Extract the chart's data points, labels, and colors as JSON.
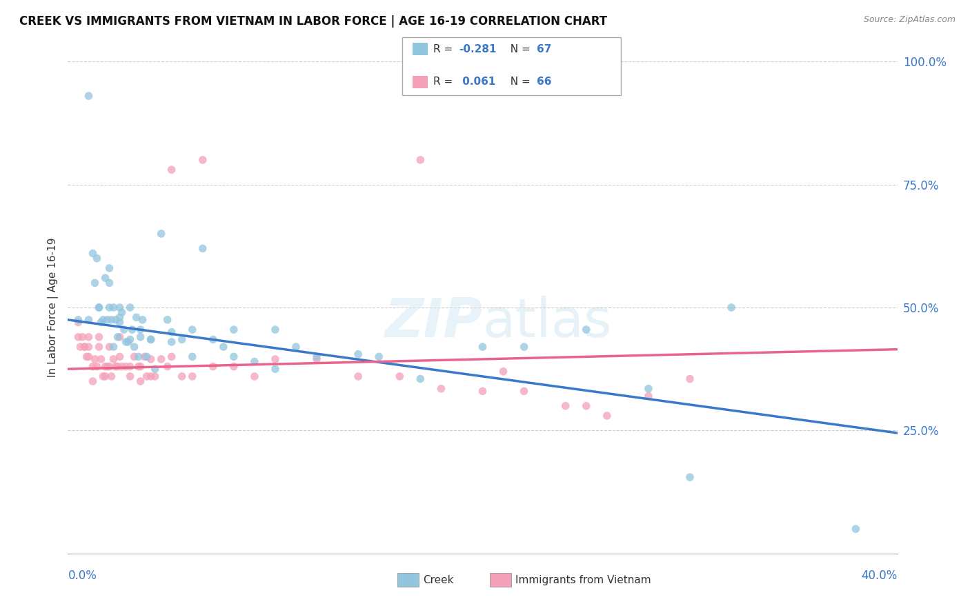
{
  "title": "CREEK VS IMMIGRANTS FROM VIETNAM IN LABOR FORCE | AGE 16-19 CORRELATION CHART",
  "source": "Source: ZipAtlas.com",
  "ylabel": "In Labor Force | Age 16-19",
  "creek_R": "-0.281",
  "creek_N": "67",
  "vietnam_R": "0.061",
  "vietnam_N": "66",
  "creek_color": "#92c5de",
  "vietnam_color": "#f4a0b8",
  "creek_line_color": "#3a78c9",
  "vietnam_line_color": "#e8648a",
  "bg_color": "#ffffff",
  "grid_color": "#cccccc",
  "xmin": 0.0,
  "xmax": 0.4,
  "ymin": 0.0,
  "ymax": 1.0,
  "ytick_values": [
    0.25,
    0.5,
    0.75,
    1.0
  ],
  "ytick_labels": [
    "25.0%",
    "50.0%",
    "75.0%",
    "100.0%"
  ],
  "creek_line_x0": 0.0,
  "creek_line_y0": 0.475,
  "creek_line_x1": 0.4,
  "creek_line_y1": 0.245,
  "vietnam_line_x0": 0.0,
  "vietnam_line_y0": 0.375,
  "vietnam_line_x1": 0.4,
  "vietnam_line_y1": 0.415,
  "creek_x": [
    0.005,
    0.01,
    0.012,
    0.013,
    0.014,
    0.015,
    0.016,
    0.017,
    0.018,
    0.019,
    0.02,
    0.02,
    0.021,
    0.022,
    0.022,
    0.023,
    0.024,
    0.025,
    0.025,
    0.026,
    0.027,
    0.028,
    0.029,
    0.03,
    0.031,
    0.032,
    0.033,
    0.034,
    0.035,
    0.036,
    0.038,
    0.04,
    0.042,
    0.045,
    0.048,
    0.05,
    0.055,
    0.06,
    0.065,
    0.07,
    0.075,
    0.08,
    0.09,
    0.1,
    0.11,
    0.12,
    0.14,
    0.15,
    0.17,
    0.2,
    0.22,
    0.25,
    0.28,
    0.3,
    0.32,
    0.38,
    0.01,
    0.015,
    0.02,
    0.025,
    0.03,
    0.035,
    0.04,
    0.05,
    0.06,
    0.08,
    0.1
  ],
  "creek_y": [
    0.475,
    0.93,
    0.61,
    0.55,
    0.6,
    0.5,
    0.47,
    0.475,
    0.56,
    0.475,
    0.5,
    0.55,
    0.475,
    0.42,
    0.5,
    0.475,
    0.44,
    0.5,
    0.47,
    0.49,
    0.455,
    0.43,
    0.43,
    0.5,
    0.455,
    0.42,
    0.48,
    0.4,
    0.44,
    0.475,
    0.4,
    0.435,
    0.375,
    0.65,
    0.475,
    0.45,
    0.435,
    0.455,
    0.62,
    0.435,
    0.42,
    0.455,
    0.39,
    0.455,
    0.42,
    0.4,
    0.405,
    0.4,
    0.355,
    0.42,
    0.42,
    0.455,
    0.335,
    0.155,
    0.5,
    0.05,
    0.475,
    0.5,
    0.58,
    0.48,
    0.435,
    0.455,
    0.435,
    0.43,
    0.4,
    0.4,
    0.375
  ],
  "vietnam_x": [
    0.005,
    0.005,
    0.006,
    0.007,
    0.008,
    0.008,
    0.009,
    0.01,
    0.01,
    0.01,
    0.012,
    0.012,
    0.013,
    0.014,
    0.015,
    0.015,
    0.016,
    0.017,
    0.018,
    0.018,
    0.019,
    0.02,
    0.02,
    0.021,
    0.022,
    0.023,
    0.024,
    0.025,
    0.025,
    0.026,
    0.028,
    0.03,
    0.03,
    0.032,
    0.034,
    0.035,
    0.035,
    0.037,
    0.038,
    0.04,
    0.04,
    0.042,
    0.045,
    0.048,
    0.05,
    0.055,
    0.06,
    0.065,
    0.07,
    0.08,
    0.09,
    0.1,
    0.12,
    0.14,
    0.16,
    0.18,
    0.2,
    0.22,
    0.25,
    0.28,
    0.05,
    0.17,
    0.21,
    0.24,
    0.26,
    0.3
  ],
  "vietnam_y": [
    0.47,
    0.44,
    0.42,
    0.44,
    0.42,
    0.42,
    0.4,
    0.44,
    0.42,
    0.4,
    0.38,
    0.35,
    0.395,
    0.38,
    0.44,
    0.42,
    0.395,
    0.36,
    0.38,
    0.36,
    0.38,
    0.42,
    0.38,
    0.36,
    0.395,
    0.38,
    0.38,
    0.44,
    0.4,
    0.38,
    0.38,
    0.38,
    0.36,
    0.4,
    0.38,
    0.38,
    0.35,
    0.4,
    0.36,
    0.395,
    0.36,
    0.36,
    0.395,
    0.38,
    0.4,
    0.36,
    0.36,
    0.8,
    0.38,
    0.38,
    0.36,
    0.395,
    0.395,
    0.36,
    0.36,
    0.335,
    0.33,
    0.33,
    0.3,
    0.32,
    0.78,
    0.8,
    0.37,
    0.3,
    0.28,
    0.355
  ]
}
